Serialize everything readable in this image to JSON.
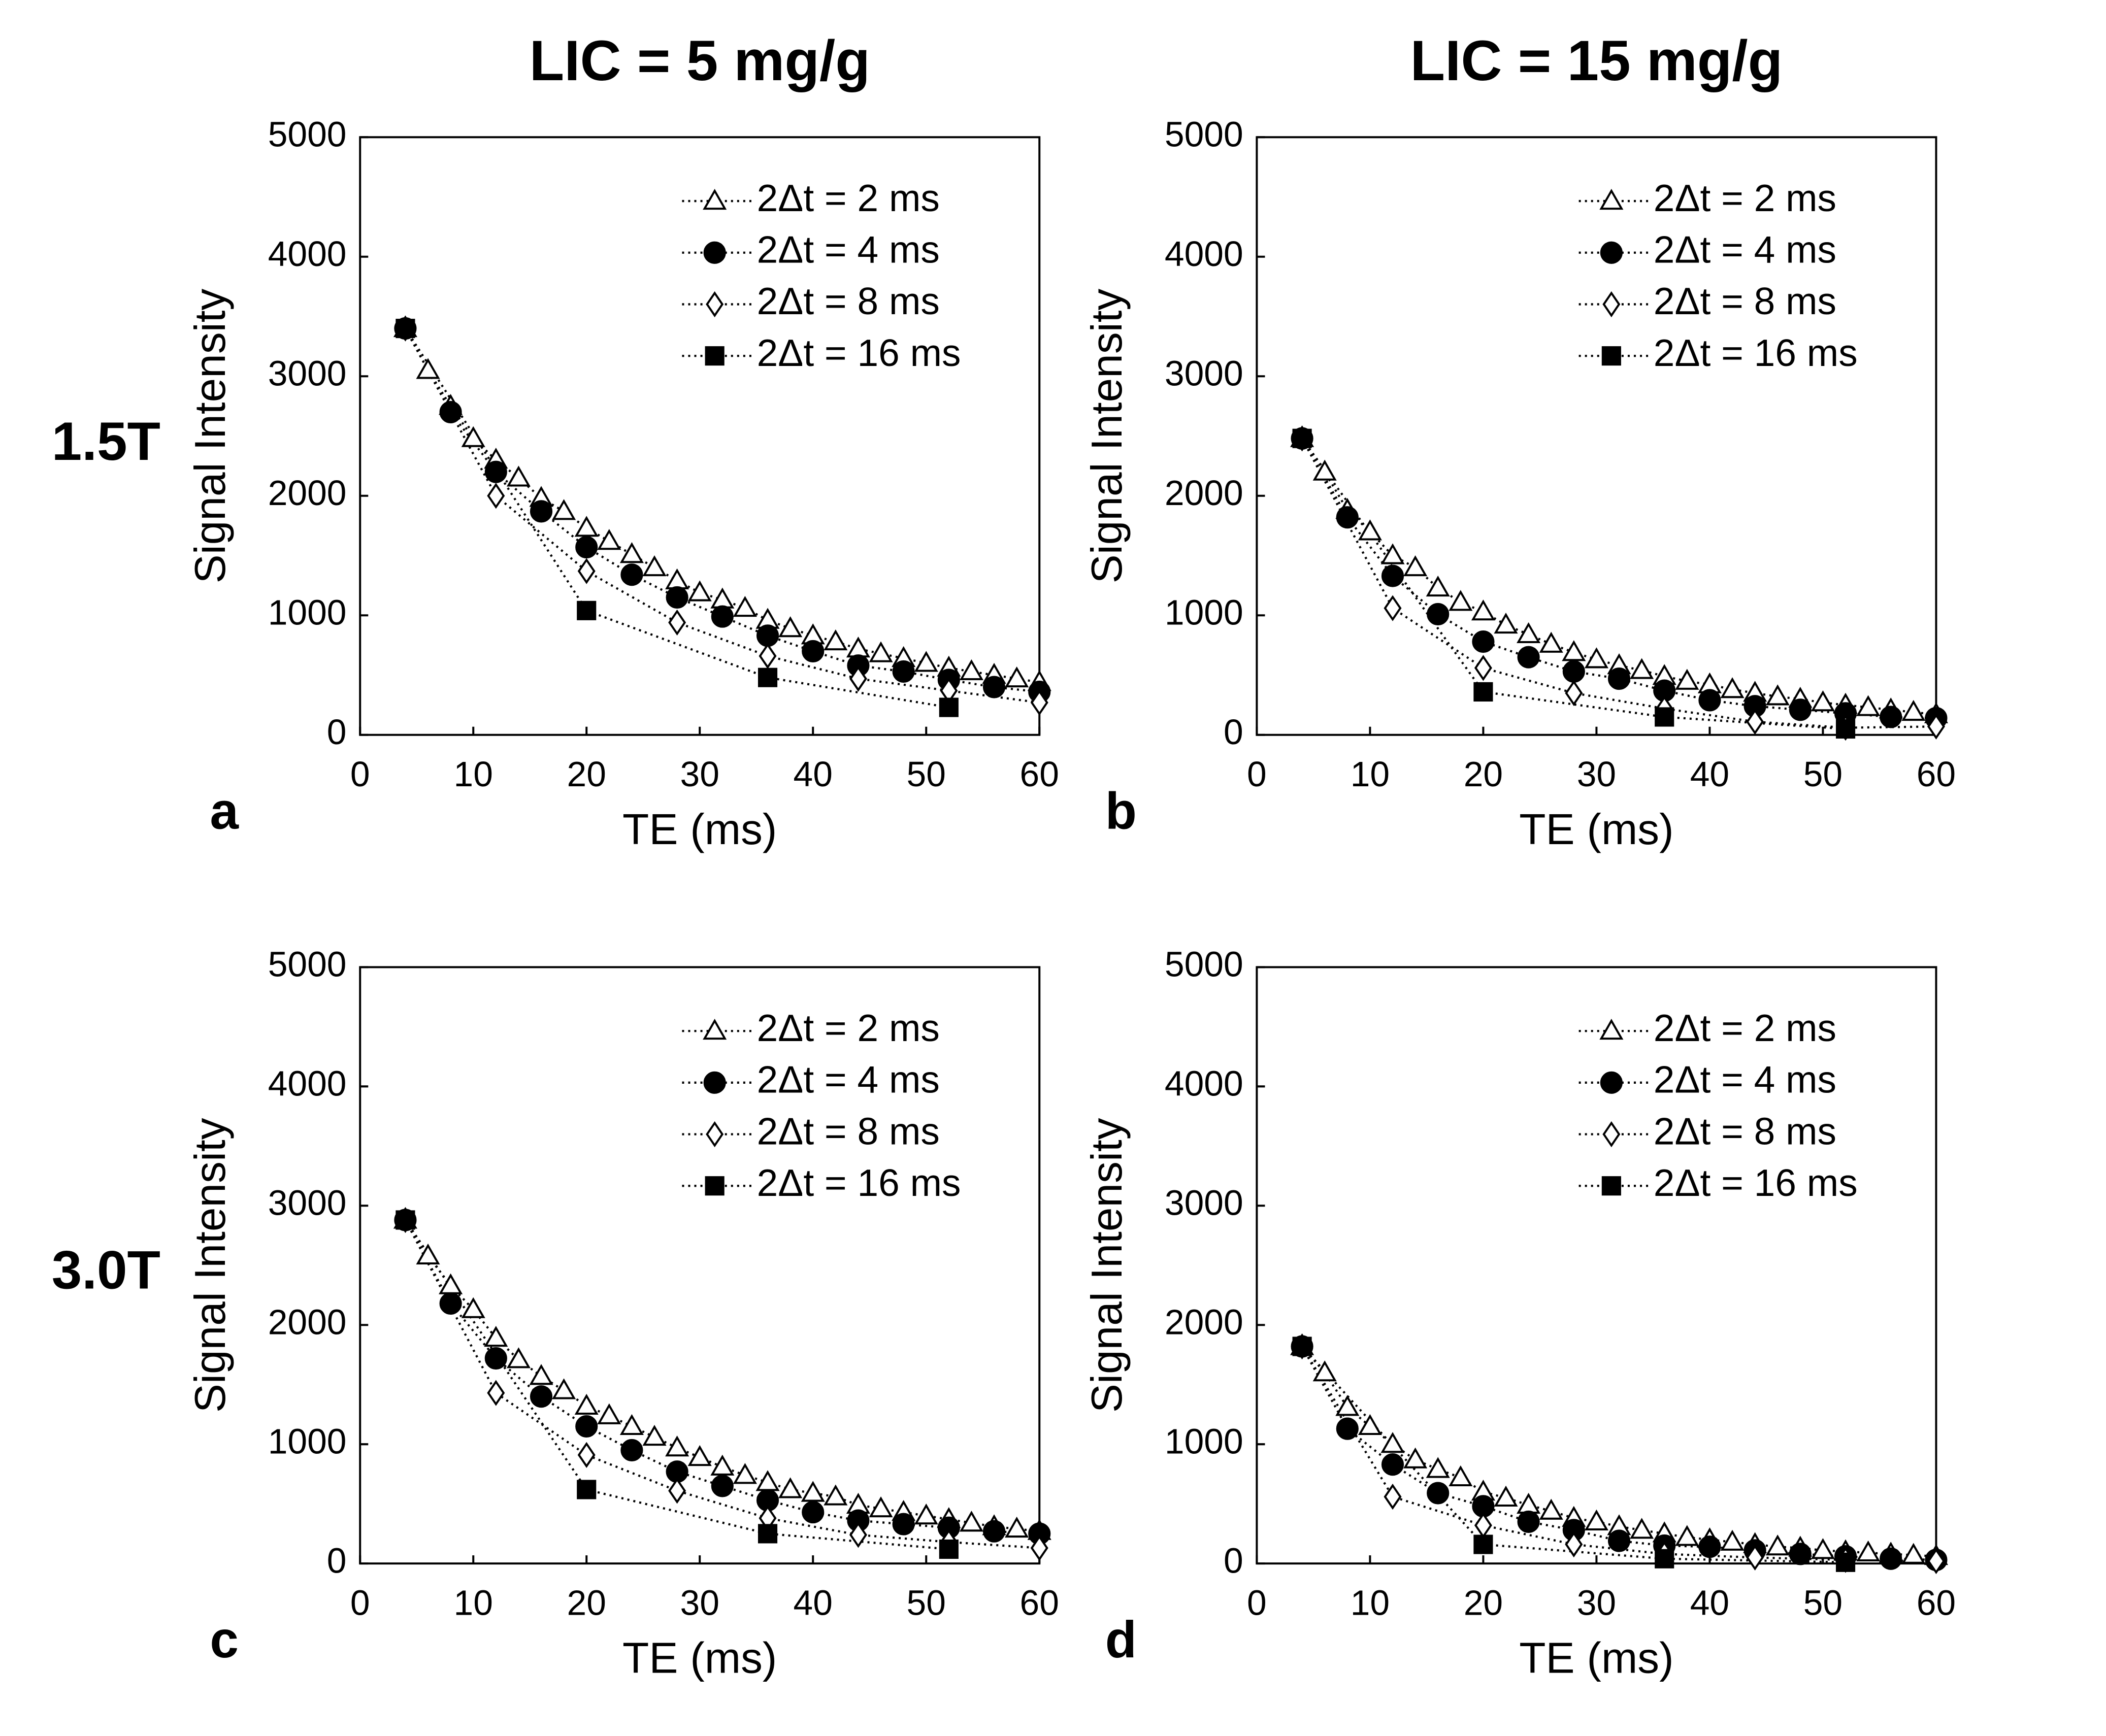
{
  "column_titles": [
    "LIC = 5 mg/g",
    "LIC = 15 mg/g"
  ],
  "row_labels": [
    "1.5T",
    "3.0T"
  ],
  "chart_data": [
    {
      "type": "line",
      "panel_label": "a",
      "x_label": "TE (ms)",
      "y_label": "Signal Intensity",
      "xlim": [
        0,
        60
      ],
      "xticks": [
        0,
        10,
        20,
        30,
        40,
        50,
        60
      ],
      "ylim": [
        0,
        5000
      ],
      "yticks": [
        0,
        1000,
        2000,
        3000,
        4000,
        5000
      ],
      "legend": "upper right",
      "series": [
        {
          "name": "2Δt = 2 ms",
          "marker": "triangle-open",
          "color": "#000000",
          "x": [
            4,
            6,
            8,
            10,
            12,
            14,
            16,
            18,
            20,
            22,
            24,
            26,
            28,
            30,
            32,
            34,
            36,
            38,
            40,
            42,
            44,
            46,
            48,
            50,
            52,
            54,
            56,
            58,
            60
          ],
          "values": [
            3400,
            3050,
            2750,
            2480,
            2300,
            2150,
            1980,
            1870,
            1730,
            1620,
            1510,
            1400,
            1290,
            1190,
            1130,
            1060,
            960,
            890,
            830,
            780,
            720,
            680,
            640,
            600,
            560,
            530,
            500,
            470,
            440
          ]
        },
        {
          "name": "2Δt = 4 ms",
          "marker": "circle",
          "color": "#000000",
          "x": [
            4,
            8,
            12,
            16,
            20,
            24,
            28,
            32,
            36,
            40,
            44,
            48,
            52,
            56,
            60
          ],
          "values": [
            3400,
            2700,
            2200,
            1870,
            1570,
            1340,
            1150,
            990,
            830,
            700,
            580,
            530,
            460,
            400,
            360
          ]
        },
        {
          "name": "2Δt = 8 ms",
          "marker": "diamond-open",
          "color": "#000000",
          "x": [
            4,
            12,
            20,
            28,
            36,
            44,
            52,
            60
          ],
          "values": [
            3400,
            2000,
            1370,
            940,
            660,
            470,
            370,
            270
          ]
        },
        {
          "name": "2Δt = 16 ms",
          "marker": "square",
          "color": "#000000",
          "x": [
            4,
            20,
            36,
            52
          ],
          "values": [
            3400,
            1040,
            480,
            230
          ]
        }
      ]
    },
    {
      "type": "line",
      "panel_label": "b",
      "x_label": "TE (ms)",
      "y_label": "Signal Intensity",
      "xlim": [
        0,
        60
      ],
      "xticks": [
        0,
        10,
        20,
        30,
        40,
        50,
        60
      ],
      "ylim": [
        0,
        5000
      ],
      "yticks": [
        0,
        1000,
        2000,
        3000,
        4000,
        5000
      ],
      "legend": "upper right",
      "series": [
        {
          "name": "2Δt = 2 ms",
          "marker": "triangle-open",
          "color": "#000000",
          "x": [
            4,
            6,
            8,
            10,
            12,
            14,
            16,
            18,
            20,
            22,
            24,
            26,
            28,
            30,
            32,
            34,
            36,
            38,
            40,
            42,
            44,
            46,
            48,
            50,
            52,
            54,
            56,
            58,
            60
          ],
          "values": [
            2480,
            2200,
            1880,
            1700,
            1500,
            1400,
            1230,
            1110,
            1030,
            920,
            840,
            760,
            690,
            630,
            580,
            540,
            490,
            450,
            420,
            380,
            350,
            320,
            300,
            270,
            250,
            230,
            210,
            190,
            170
          ]
        },
        {
          "name": "2Δt = 4 ms",
          "marker": "circle",
          "color": "#000000",
          "x": [
            4,
            8,
            12,
            16,
            20,
            24,
            28,
            32,
            36,
            40,
            44,
            48,
            52,
            56,
            60
          ],
          "values": [
            2480,
            1820,
            1330,
            1010,
            780,
            650,
            530,
            470,
            370,
            290,
            240,
            210,
            180,
            150,
            140
          ]
        },
        {
          "name": "2Δt = 8 ms",
          "marker": "diamond-open",
          "color": "#000000",
          "x": [
            4,
            12,
            20,
            28,
            36,
            44,
            52,
            60
          ],
          "values": [
            2480,
            1060,
            560,
            350,
            220,
            110,
            60,
            70
          ]
        },
        {
          "name": "2Δt = 16 ms",
          "marker": "square",
          "color": "#000000",
          "x": [
            4,
            20,
            36,
            52
          ],
          "values": [
            2480,
            360,
            150,
            50
          ]
        }
      ]
    },
    {
      "type": "line",
      "panel_label": "c",
      "x_label": "TE (ms)",
      "y_label": "Signal Intensity",
      "xlim": [
        0,
        60
      ],
      "xticks": [
        0,
        10,
        20,
        30,
        40,
        50,
        60
      ],
      "ylim": [
        0,
        5000
      ],
      "yticks": [
        0,
        1000,
        2000,
        3000,
        4000,
        5000
      ],
      "legend": "upper right",
      "series": [
        {
          "name": "2Δt = 2 ms",
          "marker": "triangle-open",
          "color": "#000000",
          "x": [
            4,
            6,
            8,
            10,
            12,
            14,
            16,
            18,
            20,
            22,
            24,
            26,
            28,
            30,
            32,
            34,
            36,
            38,
            40,
            42,
            44,
            46,
            48,
            50,
            52,
            54,
            56,
            58,
            60
          ],
          "values": [
            2880,
            2580,
            2330,
            2130,
            1890,
            1710,
            1570,
            1450,
            1320,
            1240,
            1150,
            1060,
            970,
            890,
            810,
            740,
            680,
            620,
            590,
            560,
            490,
            460,
            430,
            400,
            370,
            340,
            310,
            290,
            270
          ]
        },
        {
          "name": "2Δt = 4 ms",
          "marker": "circle",
          "color": "#000000",
          "x": [
            4,
            8,
            12,
            16,
            20,
            24,
            28,
            32,
            36,
            40,
            44,
            48,
            52,
            56,
            60
          ],
          "values": [
            2880,
            2180,
            1720,
            1400,
            1150,
            950,
            770,
            650,
            530,
            430,
            360,
            330,
            300,
            270,
            250
          ]
        },
        {
          "name": "2Δt = 8 ms",
          "marker": "diamond-open",
          "color": "#000000",
          "x": [
            4,
            12,
            20,
            28,
            36,
            44,
            52,
            60
          ],
          "values": [
            2880,
            1430,
            910,
            610,
            380,
            240,
            180,
            130
          ]
        },
        {
          "name": "2Δt = 16 ms",
          "marker": "square",
          "color": "#000000",
          "x": [
            4,
            20,
            36,
            52
          ],
          "values": [
            2880,
            620,
            250,
            120
          ]
        }
      ]
    },
    {
      "type": "line",
      "panel_label": "d",
      "x_label": "TE (ms)",
      "y_label": "Signal Intensity",
      "xlim": [
        0,
        60
      ],
      "xticks": [
        0,
        10,
        20,
        30,
        40,
        50,
        60
      ],
      "ylim": [
        0,
        5000
      ],
      "yticks": [
        0,
        1000,
        2000,
        3000,
        4000,
        5000
      ],
      "legend": "upper right",
      "series": [
        {
          "name": "2Δt = 2 ms",
          "marker": "triangle-open",
          "color": "#000000",
          "x": [
            4,
            6,
            8,
            10,
            12,
            14,
            16,
            18,
            20,
            22,
            24,
            26,
            28,
            30,
            32,
            34,
            36,
            38,
            40,
            42,
            44,
            46,
            48,
            50,
            52,
            54,
            56,
            58,
            60
          ],
          "values": [
            1820,
            1600,
            1310,
            1150,
            1000,
            870,
            790,
            720,
            600,
            550,
            490,
            440,
            380,
            350,
            310,
            280,
            250,
            220,
            200,
            180,
            160,
            140,
            130,
            110,
            100,
            90,
            80,
            70,
            60
          ]
        },
        {
          "name": "2Δt = 4 ms",
          "marker": "circle",
          "color": "#000000",
          "x": [
            4,
            8,
            12,
            16,
            20,
            24,
            28,
            32,
            36,
            40,
            44,
            48,
            52,
            56,
            60
          ],
          "values": [
            1820,
            1130,
            830,
            590,
            480,
            350,
            280,
            190,
            150,
            140,
            110,
            80,
            60,
            40,
            30
          ]
        },
        {
          "name": "2Δt = 8 ms",
          "marker": "diamond-open",
          "color": "#000000",
          "x": [
            4,
            12,
            20,
            28,
            36,
            44,
            52,
            60
          ],
          "values": [
            1820,
            560,
            320,
            160,
            80,
            50,
            30,
            20
          ]
        },
        {
          "name": "2Δt = 16 ms",
          "marker": "square",
          "color": "#000000",
          "x": [
            4,
            20,
            36,
            52
          ],
          "values": [
            1820,
            160,
            40,
            10
          ]
        }
      ]
    }
  ]
}
